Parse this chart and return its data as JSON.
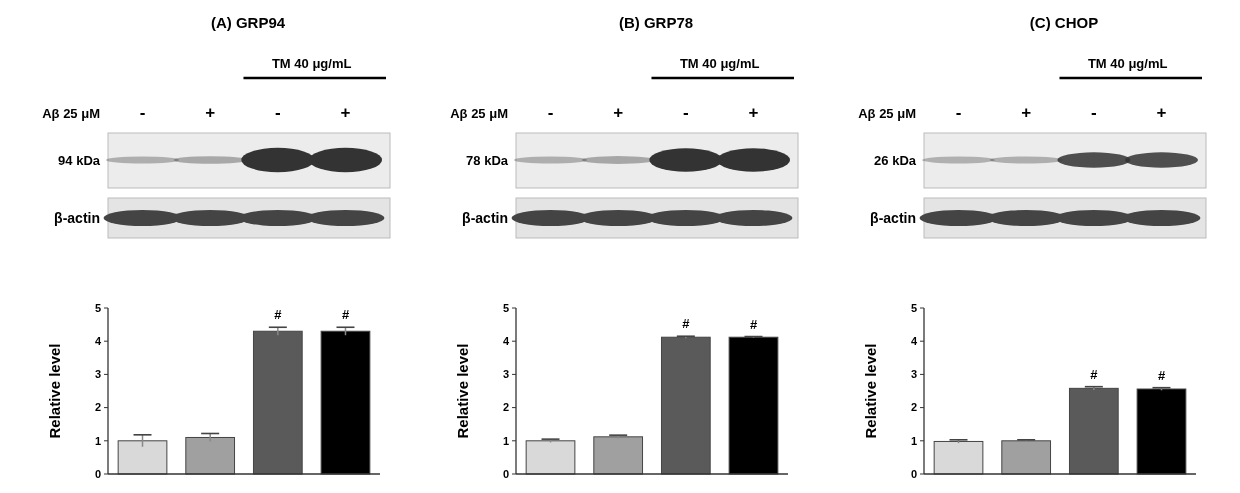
{
  "chart_data": [
    {
      "type": "bar",
      "title": "(A) GRP94",
      "ylabel": "Relative level",
      "categories": [
        null,
        null,
        null,
        null
      ],
      "values": [
        1.0,
        1.1,
        4.3,
        4.3
      ],
      "errors": [
        0.18,
        0.12,
        0.12,
        0.12
      ],
      "colors": [
        "#d9d9d9",
        "#a0a0a0",
        "#5a5a5a",
        "#000000"
      ],
      "value_labels": [
        null,
        null,
        "#",
        "#"
      ],
      "ylim": [
        0,
        5
      ],
      "yticks": [
        0,
        1,
        2,
        3,
        4,
        5
      ],
      "grid": false,
      "annotations": [
        "TM 40 μg/mL",
        "Aβ 25 μM",
        "-",
        "+",
        "-",
        "+",
        "94 kDa",
        "β-actin"
      ]
    },
    {
      "type": "bar",
      "title": "(B) GRP78",
      "ylabel": "Relative level",
      "categories": [
        null,
        null,
        null,
        null
      ],
      "values": [
        1.0,
        1.12,
        4.12,
        4.12
      ],
      "errors": [
        0.05,
        0.05,
        0.03,
        0.02
      ],
      "colors": [
        "#d9d9d9",
        "#a0a0a0",
        "#5a5a5a",
        "#000000"
      ],
      "value_labels": [
        null,
        null,
        "#",
        "#"
      ],
      "ylim": [
        0,
        5
      ],
      "yticks": [
        0,
        1,
        2,
        3,
        4,
        5
      ],
      "grid": false,
      "annotations": [
        "TM 40 μg/mL",
        "Aβ 25 μM",
        "-",
        "+",
        "-",
        "+",
        "78 kDa",
        "β-actin"
      ]
    },
    {
      "type": "bar",
      "title": "(C) CHOP",
      "ylabel": "Relative level",
      "categories": [
        null,
        null,
        null,
        null
      ],
      "values": [
        0.98,
        1.0,
        2.58,
        2.56
      ],
      "errors": [
        0.05,
        0.03,
        0.05,
        0.04
      ],
      "colors": [
        "#d9d9d9",
        "#a0a0a0",
        "#5a5a5a",
        "#000000"
      ],
      "value_labels": [
        null,
        null,
        "#",
        "#"
      ],
      "ylim": [
        0,
        5
      ],
      "yticks": [
        0,
        1,
        2,
        3,
        4,
        5
      ],
      "grid": false,
      "annotations": [
        "TM 40 μg/mL",
        "Aβ 25 μM",
        "-",
        "+",
        "-",
        "+",
        "26 kDa",
        "β-actin"
      ]
    }
  ]
}
